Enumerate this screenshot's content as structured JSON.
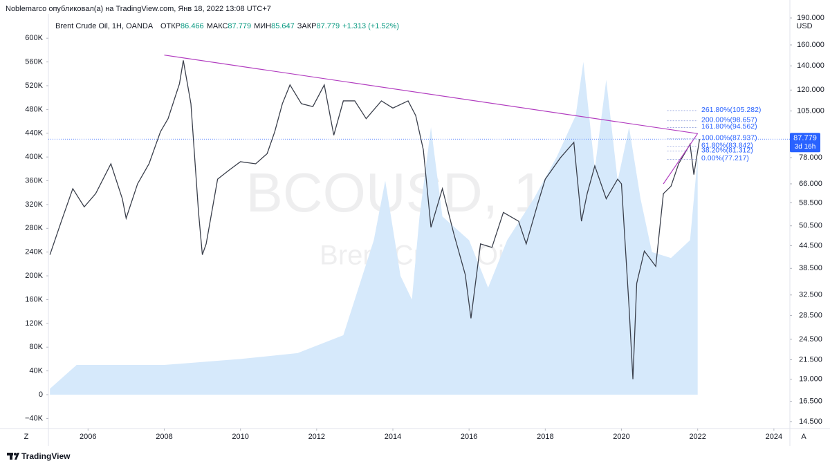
{
  "chart_data": {
    "type": "line",
    "header": "Noblemarco опубликовал(а) на TradingView.com, Янв 18, 2022 13:08 UTC+7",
    "title": "Brent Crude Oil, 1Н, OANDA",
    "ohlc": [
      {
        "label": "ОТКР",
        "value": 86.466
      },
      {
        "label": "МАКС",
        "value": 87.779
      },
      {
        "label": "МИН",
        "value": 85.647
      },
      {
        "label": "ЗАКР",
        "value": 87.779
      }
    ],
    "change": "+1.313 (+1.52%)",
    "watermark": "BCOUSD, 1Н",
    "watermark_sub": "Brent Crude Oil",
    "currency": "USD",
    "last_price": 87.779,
    "countdown": "3d 16h",
    "footer": "TradingView",
    "xlim": [
      2004.96,
      2024.42
    ],
    "xticks": [
      2006,
      2008,
      2010,
      2012,
      2014,
      2016,
      2018,
      2020,
      2022,
      2024
    ],
    "ylim": [
      -57000,
      641000
    ],
    "yticks": [
      {
        "value": 600000,
        "label": "600K"
      },
      {
        "value": 560000,
        "label": "560K"
      },
      {
        "value": 520000,
        "label": "520K"
      },
      {
        "value": 480000,
        "label": "480K"
      },
      {
        "value": 440000,
        "label": "440K"
      },
      {
        "value": 400000,
        "label": "400K"
      },
      {
        "value": 360000,
        "label": "360K"
      },
      {
        "value": 320000,
        "label": "320K"
      },
      {
        "value": 280000,
        "label": "280K"
      },
      {
        "value": 240000,
        "label": "240K"
      },
      {
        "value": 200000,
        "label": "200K"
      },
      {
        "value": 160000,
        "label": "160K"
      },
      {
        "value": 120000,
        "label": "120K"
      },
      {
        "value": 80000,
        "label": "80K"
      },
      {
        "value": 40000,
        "label": "40K"
      },
      0,
      {
        "value": -40000,
        "label": "−40K"
      }
    ],
    "y2_log": true,
    "y2lim": [
      13.87,
      195.1
    ],
    "y2ticks": [
      {
        "value": 190,
        "label": "190.000"
      },
      {
        "value": 160,
        "label": "160.000"
      },
      {
        "value": 140,
        "label": "140.000"
      },
      {
        "value": 120,
        "label": "120.000"
      },
      {
        "value": 105,
        "label": "105.000"
      },
      {
        "value": 78,
        "label": "78.000"
      },
      {
        "value": 66,
        "label": "66.000"
      },
      {
        "value": 58.5,
        "label": "58.500"
      },
      {
        "value": 50.5,
        "label": "50.500"
      },
      {
        "value": 44.5,
        "label": "44.500"
      },
      {
        "value": 38.5,
        "label": "38.500"
      },
      {
        "value": 32.5,
        "label": "32.500"
      },
      {
        "value": 28.5,
        "label": "28.500"
      },
      {
        "value": 24.5,
        "label": "24.500"
      },
      {
        "value": 21.5,
        "label": "21.500"
      },
      {
        "value": 19,
        "label": "19.000"
      },
      {
        "value": 16.5,
        "label": "16.500"
      },
      {
        "value": 14.5,
        "label": "14.500"
      }
    ],
    "series": [
      {
        "axis": "y",
        "kind": "area",
        "color": "#d6e9fb",
        "x": [
          2005.0,
          2005.7,
          2008.0,
          2010.0,
          2011.5,
          2012.7,
          2013.0,
          2013.5,
          2013.8,
          2014.2,
          2014.5,
          2014.7,
          2015.0,
          2015.3,
          2016.0,
          2016.5,
          2017.0,
          2017.7,
          2018.3,
          2018.8,
          2019.0,
          2019.3,
          2019.6,
          2019.9,
          2020.2,
          2020.5,
          2020.8,
          2021.3,
          2021.8,
          2022.0
        ],
        "values": [
          10000,
          50000,
          50000,
          60000,
          70000,
          100000,
          160000,
          260000,
          360000,
          200000,
          160000,
          300000,
          450000,
          300000,
          260000,
          180000,
          260000,
          330000,
          400000,
          470000,
          560000,
          380000,
          530000,
          360000,
          450000,
          330000,
          240000,
          230000,
          260000,
          400000
        ]
      },
      {
        "axis": "y2",
        "kind": "line",
        "color": "#3a3f4b",
        "x": [
          2005.0,
          2005.3,
          2005.6,
          2005.9,
          2006.2,
          2006.6,
          2006.9,
          2007.0,
          2007.3,
          2007.6,
          2007.9,
          2008.1,
          2008.4,
          2008.5,
          2008.7,
          2008.9,
          2009.0,
          2009.1,
          2009.4,
          2009.7,
          2010.0,
          2010.4,
          2010.7,
          2010.9,
          2011.1,
          2011.3,
          2011.6,
          2011.9,
          2012.2,
          2012.45,
          2012.7,
          2013.0,
          2013.3,
          2013.7,
          2014.0,
          2014.4,
          2014.6,
          2014.8,
          2015.0,
          2015.3,
          2015.6,
          2015.9,
          2016.05,
          2016.3,
          2016.6,
          2016.9,
          2017.3,
          2017.5,
          2017.8,
          2018.0,
          2018.4,
          2018.75,
          2018.95,
          2019.1,
          2019.3,
          2019.6,
          2019.9,
          2020.0,
          2020.2,
          2020.3,
          2020.4,
          2020.6,
          2020.9,
          2021.1,
          2021.3,
          2021.5,
          2021.8,
          2021.9,
          2022.05
        ],
        "values": [
          42,
          52,
          64,
          57,
          62,
          75,
          60,
          53,
          66,
          75,
          92,
          100,
          125,
          145,
          110,
          55,
          42,
          45,
          68,
          72,
          76,
          75,
          80,
          92,
          110,
          124,
          110,
          108,
          124,
          90,
          112,
          112,
          100,
          112,
          107,
          112,
          102,
          82,
          50,
          64,
          48,
          37,
          28,
          45,
          44,
          55,
          52,
          45,
          58,
          68,
          78,
          86,
          52,
          62,
          74,
          60,
          68,
          66,
          30,
          19,
          35,
          43,
          39,
          62,
          65,
          75,
          85,
          70,
          87.779
        ]
      }
    ],
    "trendlines": [
      {
        "color": "#b23ec0",
        "x": [
          2008.0,
          2022.0
        ],
        "y": [
          150,
          90.9
        ]
      },
      {
        "color": "#b23ec0",
        "x": [
          2021.1,
          2022.0
        ],
        "y": [
          66,
          91
        ]
      }
    ],
    "fib_levels": [
      {
        "value": 105.282,
        "label": "261.80%(105.282)"
      },
      {
        "value": 98.657,
        "label": "200.00%(98.657)"
      },
      {
        "value": 94.562,
        "label": "161.80%(94.562)"
      },
      {
        "value": 87.937,
        "label": "100.00%(87.937)"
      },
      {
        "value": 83.842,
        "label": "61.80%(83.842)"
      },
      {
        "value": 81.312,
        "label": "38.20%(81.312)"
      },
      {
        "value": 77.217,
        "label": "0.00%(77.217)"
      }
    ]
  }
}
